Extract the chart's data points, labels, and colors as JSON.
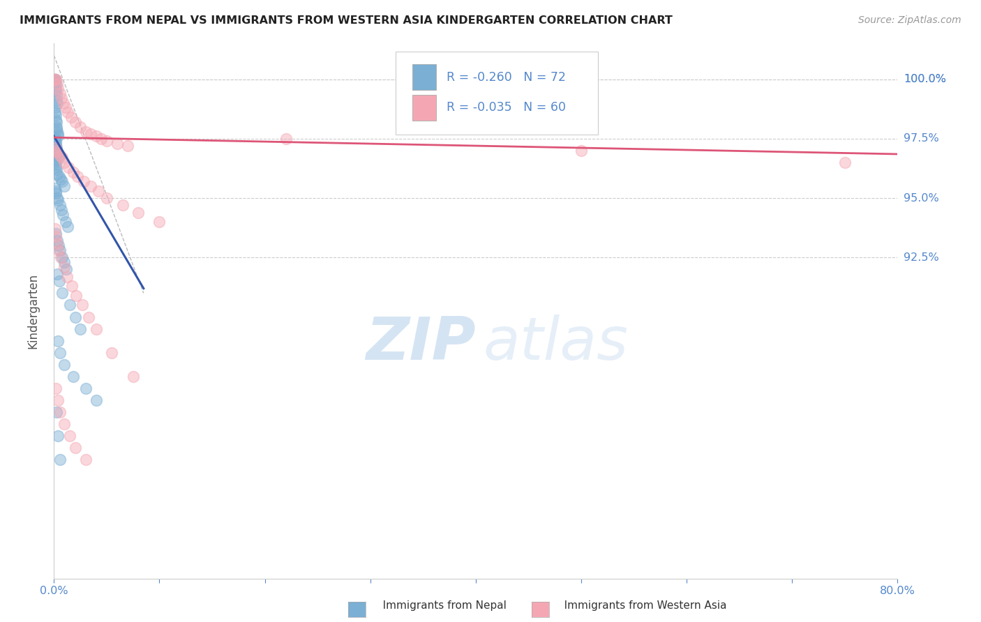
{
  "title": "IMMIGRANTS FROM NEPAL VS IMMIGRANTS FROM WESTERN ASIA KINDERGARTEN CORRELATION CHART",
  "source": "Source: ZipAtlas.com",
  "ylabel": "Kindergarten",
  "xlim": [
    0.0,
    80.0
  ],
  "ylim": [
    79.0,
    101.5
  ],
  "y_ticks": [
    92.5,
    95.0,
    97.5,
    100.0
  ],
  "y_tick_labels": [
    "92.5%",
    "95.0%",
    "97.5%",
    "100.0%"
  ],
  "nepal_color": "#7BAFD4",
  "western_asia_color": "#F4A7B3",
  "nepal_R": -0.26,
  "nepal_N": 72,
  "western_asia_R": -0.035,
  "western_asia_N": 60,
  "nepal_scatter_x": [
    0.05,
    0.08,
    0.1,
    0.12,
    0.15,
    0.18,
    0.2,
    0.22,
    0.25,
    0.28,
    0.1,
    0.13,
    0.16,
    0.19,
    0.21,
    0.24,
    0.27,
    0.3,
    0.35,
    0.4,
    0.1,
    0.12,
    0.15,
    0.18,
    0.2,
    0.23,
    0.26,
    0.3,
    0.38,
    0.45,
    0.1,
    0.14,
    0.17,
    0.2,
    0.25,
    0.32,
    0.5,
    0.65,
    0.8,
    1.0,
    0.1,
    0.15,
    0.2,
    0.28,
    0.4,
    0.55,
    0.7,
    0.85,
    1.1,
    1.3,
    0.2,
    0.3,
    0.45,
    0.6,
    0.8,
    1.0,
    1.2,
    0.3,
    0.5,
    0.8,
    1.5,
    2.0,
    2.5,
    0.4,
    0.6,
    1.0,
    1.8,
    3.0,
    4.0,
    0.25,
    0.35,
    0.55
  ],
  "nepal_scatter_y": [
    100.0,
    100.0,
    100.0,
    99.9,
    99.8,
    99.6,
    99.5,
    99.3,
    99.1,
    99.0,
    98.8,
    98.6,
    98.5,
    98.3,
    98.2,
    98.0,
    97.9,
    97.8,
    97.7,
    97.6,
    97.5,
    97.5,
    97.4,
    97.3,
    97.2,
    97.1,
    97.0,
    96.9,
    96.8,
    96.7,
    96.6,
    96.5,
    96.4,
    96.3,
    96.2,
    96.0,
    95.9,
    95.8,
    95.7,
    95.5,
    95.4,
    95.3,
    95.2,
    95.0,
    94.9,
    94.7,
    94.5,
    94.3,
    94.0,
    93.8,
    93.5,
    93.2,
    93.0,
    92.8,
    92.5,
    92.3,
    92.0,
    91.8,
    91.5,
    91.0,
    90.5,
    90.0,
    89.5,
    89.0,
    88.5,
    88.0,
    87.5,
    87.0,
    86.5,
    86.0,
    85.0,
    84.0
  ],
  "western_asia_scatter_x": [
    0.08,
    0.12,
    0.2,
    0.3,
    0.4,
    0.55,
    0.7,
    0.9,
    1.1,
    1.3,
    1.6,
    2.0,
    2.5,
    3.0,
    3.5,
    4.0,
    4.5,
    5.0,
    6.0,
    7.0,
    0.15,
    0.25,
    0.38,
    0.55,
    0.75,
    1.0,
    1.4,
    1.8,
    2.2,
    2.8,
    3.5,
    4.2,
    5.0,
    6.5,
    8.0,
    10.0,
    0.1,
    0.18,
    0.28,
    0.45,
    0.65,
    0.95,
    1.25,
    1.7,
    2.1,
    2.7,
    3.3,
    4.0,
    5.5,
    7.5,
    0.2,
    0.35,
    0.6,
    1.0,
    1.5,
    2.0,
    3.0,
    22.0,
    50.0,
    75.0
  ],
  "western_asia_scatter_y": [
    100.0,
    100.0,
    100.0,
    99.8,
    99.6,
    99.4,
    99.2,
    99.0,
    98.8,
    98.6,
    98.4,
    98.2,
    98.0,
    97.8,
    97.7,
    97.6,
    97.5,
    97.4,
    97.3,
    97.2,
    97.1,
    97.0,
    96.9,
    96.8,
    96.7,
    96.5,
    96.3,
    96.1,
    95.9,
    95.7,
    95.5,
    95.3,
    95.0,
    94.7,
    94.4,
    94.0,
    93.7,
    93.4,
    93.1,
    92.8,
    92.5,
    92.1,
    91.7,
    91.3,
    90.9,
    90.5,
    90.0,
    89.5,
    88.5,
    87.5,
    87.0,
    86.5,
    86.0,
    85.5,
    85.0,
    84.5,
    84.0,
    97.5,
    97.0,
    96.5
  ],
  "nepal_trend_x0": 0.0,
  "nepal_trend_x1": 8.5,
  "nepal_trend_y0": 97.6,
  "nepal_trend_y1": 91.2,
  "wa_trend_x0": 0.0,
  "wa_trend_x1": 80.0,
  "wa_trend_y0": 97.55,
  "wa_trend_y1": 96.85,
  "diag_x0": 0.0,
  "diag_x1": 8.5,
  "diag_y0": 101.0,
  "diag_y1": 91.0,
  "bg_color": "#FFFFFF",
  "grid_color": "#CCCCCC",
  "axis_label_color": "#5588CC",
  "title_color": "#222222",
  "nepal_line_color": "#3355AA",
  "wa_line_color": "#DD5577"
}
